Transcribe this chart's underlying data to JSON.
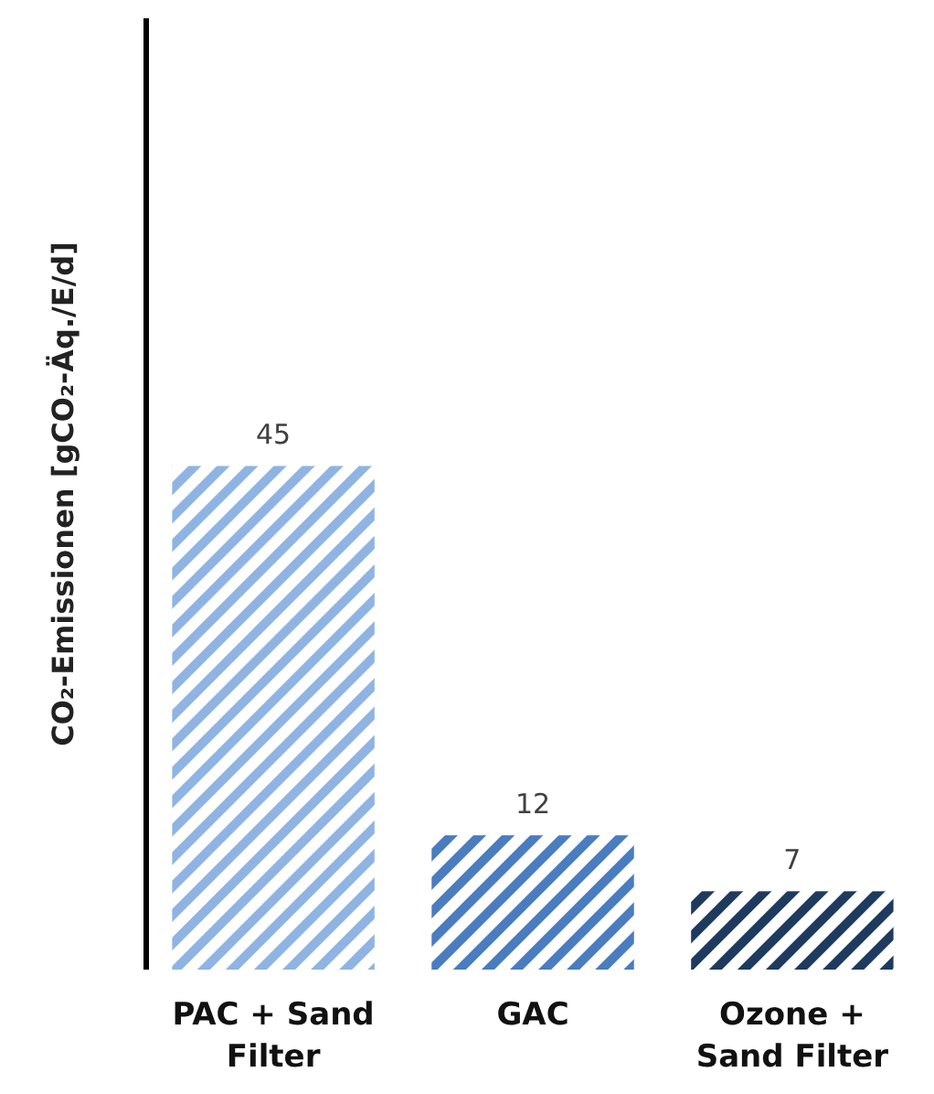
{
  "chart_data": {
    "type": "bar",
    "ylabel": "CO₂-Emissionen [gCO₂-Äq./E/d]",
    "categories": [
      "PAC + Sand Filter",
      "GAC",
      "Ozone + Sand Filter"
    ],
    "values": [
      45,
      12,
      7
    ],
    "colors": [
      "#8fb4e3",
      "#4a7cc0",
      "#1f3a5f"
    ],
    "ylim": [
      0,
      85
    ],
    "data_labels": true
  }
}
